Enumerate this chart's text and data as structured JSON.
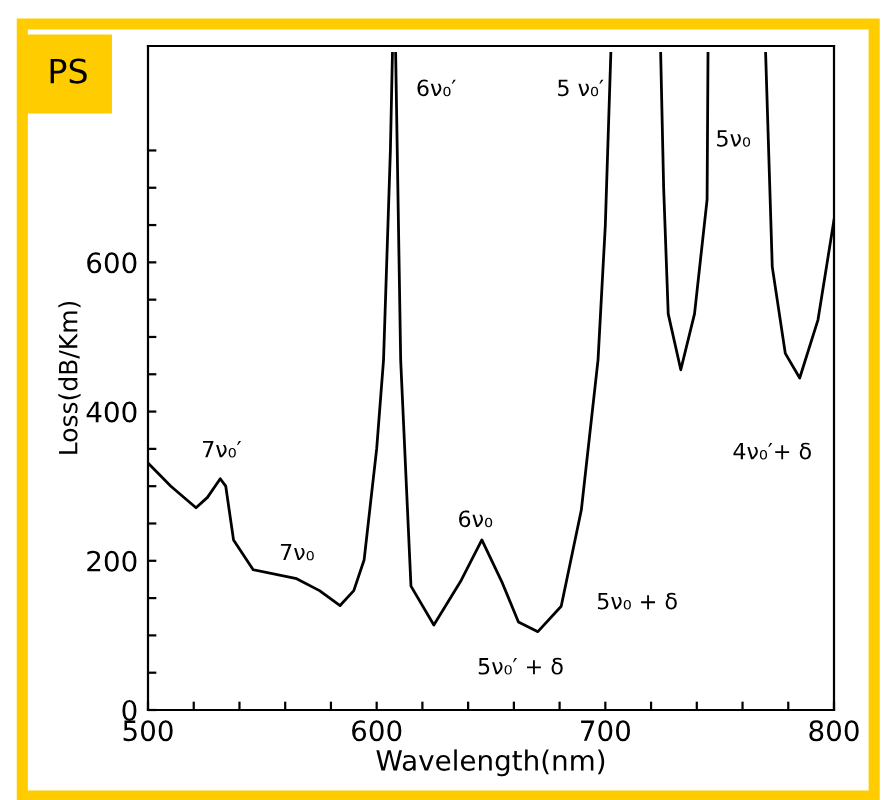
{
  "chart_data": {
    "type": "line",
    "xlabel": "Wavelength(nm)",
    "ylabel": "Loss(dB/Km)",
    "xlim": [
      500,
      800
    ],
    "ylim": [
      0,
      890
    ],
    "xticks": [
      500,
      {
        "value": 520,
        "label": null
      },
      {
        "value": 540,
        "label": null
      },
      {
        "value": 560,
        "label": null
      },
      {
        "value": 580,
        "label": null
      },
      600,
      {
        "value": 620,
        "label": null
      },
      {
        "value": 640,
        "label": null
      },
      {
        "value": 660,
        "label": null
      },
      {
        "value": 680,
        "label": null
      },
      700,
      {
        "value": 720,
        "label": null
      },
      {
        "value": 740,
        "label": null
      },
      {
        "value": 760,
        "label": null
      },
      {
        "value": 780,
        "label": null
      },
      800
    ],
    "yticks": [
      0,
      {
        "value": 50,
        "label": null
      },
      {
        "value": 100,
        "label": null
      },
      {
        "value": 150,
        "label": null
      },
      200,
      {
        "value": 250,
        "label": null
      },
      {
        "value": 300,
        "label": null
      },
      {
        "value": 350,
        "label": null
      },
      400,
      {
        "value": 450,
        "label": null
      },
      {
        "value": 500,
        "label": null
      },
      {
        "value": 550,
        "label": null
      },
      600,
      {
        "value": 650,
        "label": null
      },
      {
        "value": 700,
        "label": null
      },
      {
        "value": 750,
        "label": null
      }
    ],
    "grid": false,
    "legend": false,
    "marker": "none",
    "line_style": "solid",
    "series": [
      {
        "color": "#000000",
        "x": [
          500,
          510,
          521,
          526,
          531.6,
          534,
          537.4,
          546,
          565,
          575,
          584,
          590,
          594.5,
          600,
          603,
          606,
          606.9,
          607.5,
          608.3,
          609,
          610.5,
          615,
          625,
          637,
          646,
          655,
          662,
          670.5,
          680.7,
          689.5,
          696.8,
          700,
          702.4,
          710,
          724.2,
          725.5,
          727.5,
          733,
          739,
          744.5,
          744.9,
          760,
          770.1,
          773,
          778.7,
          785,
          793,
          800
        ],
        "values": [
          331,
          300,
          271,
          285,
          310,
          300,
          228,
          188,
          176,
          160,
          140,
          160,
          201,
          350,
          469,
          750,
          880,
          null,
          880,
          750,
          469,
          166,
          114,
          174,
          228,
          170,
          118,
          105,
          139,
          268,
          469,
          650,
          880,
          null,
          880,
          700,
          531,
          456,
          531,
          684,
          880,
          null,
          880,
          594,
          478,
          445,
          523,
          657
        ]
      }
    ],
    "annotations": [
      "PS",
      "7ν₀′",
      "7ν₀",
      "6ν₀′",
      "6ν₀",
      "5 ν₀′",
      "5ν₀",
      "5ν₀ + δ",
      "5ν₀′ + δ",
      "4ν₀′+ δ"
    ]
  }
}
